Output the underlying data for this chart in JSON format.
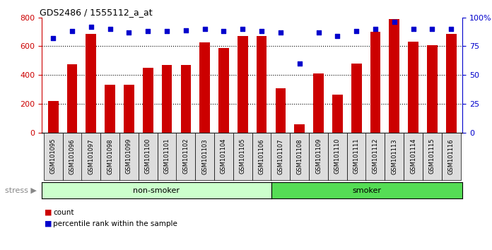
{
  "title": "GDS2486 / 1555112_a_at",
  "samples": [
    "GSM101095",
    "GSM101096",
    "GSM101097",
    "GSM101098",
    "GSM101099",
    "GSM101100",
    "GSM101101",
    "GSM101102",
    "GSM101103",
    "GSM101104",
    "GSM101105",
    "GSM101106",
    "GSM101107",
    "GSM101108",
    "GSM101109",
    "GSM101110",
    "GSM101111",
    "GSM101112",
    "GSM101113",
    "GSM101114",
    "GSM101115",
    "GSM101116"
  ],
  "counts": [
    220,
    475,
    685,
    330,
    330,
    450,
    470,
    470,
    625,
    590,
    670,
    670,
    310,
    55,
    410,
    265,
    480,
    700,
    790,
    630,
    605,
    685
  ],
  "percentiles": [
    82,
    88,
    92,
    90,
    87,
    88,
    88,
    89,
    90,
    88,
    90,
    88,
    87,
    60,
    87,
    84,
    88,
    90,
    96,
    90,
    90,
    90
  ],
  "non_smoker_count": 12,
  "smoker_count": 10,
  "bar_color": "#cc0000",
  "dot_color": "#0000cc",
  "non_smoker_color": "#ccffcc",
  "smoker_color": "#55dd55",
  "ylim_left": [
    0,
    800
  ],
  "ylim_right": [
    0,
    100
  ],
  "yticks_left": [
    0,
    200,
    400,
    600,
    800
  ],
  "yticks_right": [
    0,
    25,
    50,
    75,
    100
  ],
  "stress_label": "stress",
  "non_smoker_label": "non-smoker",
  "smoker_label": "smoker",
  "legend_count": "count",
  "legend_percentile": "percentile rank within the sample",
  "background_color": "#ffffff",
  "grid_color": "#000000",
  "tick_color_left": "#cc0000",
  "tick_color_right": "#0000cc",
  "bar_width": 0.55,
  "xtick_bg": "#dddddd"
}
